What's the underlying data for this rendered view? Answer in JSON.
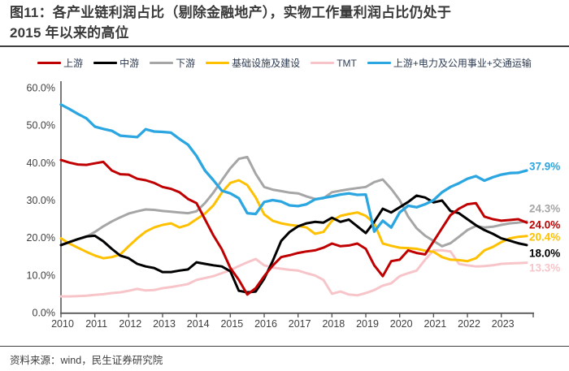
{
  "title": {
    "line1": "图11：各产业链利润占比（剔除金融地产），实物工作量利润占比仍处于",
    "line2": "2015 年以来的高位"
  },
  "source": "资料来源：wind，民生证券研究院",
  "colors": {
    "axis": "#595959",
    "tick_text": "#404040",
    "title_text": "#3a3a3a",
    "legend_text": "#2d3b52"
  },
  "chart_data": {
    "type": "line",
    "x_start": 2010,
    "x_step": 0.25,
    "x_ticks": [
      2010,
      2011,
      2012,
      2013,
      2014,
      2015,
      2016,
      2017,
      2018,
      2019,
      2020,
      2021,
      2022,
      2023
    ],
    "y_ticks": [
      "0.0%",
      "10.0%",
      "20.0%",
      "30.0%",
      "40.0%",
      "50.0%",
      "60.0%"
    ],
    "ylim": [
      0,
      60
    ],
    "xlim": [
      2010,
      2023.85
    ],
    "legend_position": "top",
    "grid": false,
    "series": [
      {
        "name": "上游",
        "color": "#C00000",
        "end_label": "24.0%",
        "values": [
          40.7,
          40.0,
          39.5,
          39.4,
          39.8,
          40.2,
          37.9,
          36.9,
          36.8,
          35.7,
          35.3,
          34.6,
          33.5,
          33.0,
          32.1,
          30.3,
          29.2,
          24.9,
          20.6,
          16.9,
          11.9,
          8.7,
          4.8,
          6.5,
          9.7,
          12.5,
          14.8,
          15.3,
          15.9,
          16.3,
          16.6,
          17.3,
          18.4,
          17.7,
          17.9,
          18.4,
          17.0,
          12.6,
          9.7,
          13.7,
          14.1,
          16.6,
          15.9,
          15.5,
          19.0,
          22.5,
          26.0,
          27.7,
          28.9,
          29.2,
          25.6,
          24.9,
          24.5,
          24.7,
          24.9,
          24.0
        ]
      },
      {
        "name": "中游",
        "color": "#000000",
        "end_label": "18.0%",
        "values": [
          18.0,
          18.8,
          19.6,
          20.3,
          20.5,
          19.0,
          17.0,
          15.2,
          14.5,
          13.0,
          12.3,
          11.9,
          10.8,
          10.8,
          11.2,
          11.5,
          13.4,
          13.0,
          12.6,
          12.3,
          11.0,
          5.8,
          5.4,
          5.6,
          9.0,
          13.7,
          19.1,
          21.5,
          23.0,
          23.8,
          24.2,
          24.0,
          25.3,
          24.2,
          24.8,
          23.0,
          21.2,
          24.2,
          27.7,
          26.7,
          28.1,
          29.5,
          31.2,
          30.7,
          29.4,
          29.9,
          27.1,
          26.5,
          24.9,
          23.3,
          22.0,
          21.0,
          19.8,
          19.2,
          18.5,
          18.0
        ]
      },
      {
        "name": "下游",
        "color": "#A6A6A6",
        "end_label": "24.3%",
        "values": [
          18.0,
          18.8,
          19.5,
          20.2,
          21.5,
          23.0,
          24.3,
          25.4,
          26.4,
          27.0,
          27.5,
          27.4,
          27.1,
          26.9,
          26.7,
          26.5,
          27.0,
          29.2,
          32.0,
          35.3,
          38.5,
          41.0,
          41.5,
          37.0,
          33.5,
          32.8,
          32.4,
          32.0,
          31.8,
          31.0,
          30.3,
          30.5,
          32.1,
          32.5,
          32.9,
          33.2,
          33.5,
          34.8,
          35.5,
          33.0,
          30.0,
          25.6,
          22.5,
          20.5,
          19.1,
          17.7,
          18.5,
          20.2,
          22.0,
          23.1,
          22.7,
          22.9,
          23.4,
          23.8,
          24.0,
          24.3
        ]
      },
      {
        "name": "基础设施及建设",
        "color": "#FFC000",
        "end_label": "20.4%",
        "values": [
          19.8,
          18.4,
          17.3,
          16.2,
          15.2,
          14.5,
          14.8,
          15.5,
          17.7,
          19.8,
          21.6,
          22.7,
          23.4,
          23.8,
          22.7,
          23.4,
          24.9,
          26.4,
          28.6,
          32.0,
          34.6,
          35.3,
          34.0,
          30.7,
          26.2,
          24.5,
          23.8,
          23.4,
          23.1,
          22.7,
          21.0,
          21.5,
          24.5,
          25.8,
          26.3,
          26.7,
          25.8,
          23.8,
          18.4,
          17.8,
          17.3,
          17.2,
          17.0,
          16.5,
          16.2,
          14.8,
          14.1,
          14.0,
          13.7,
          14.5,
          16.6,
          17.5,
          18.8,
          19.8,
          20.2,
          20.4
        ]
      },
      {
        "name": "TMT",
        "color": "#F7C5C9",
        "end_label": "13.3%",
        "values": [
          4.3,
          4.3,
          4.4,
          4.5,
          4.7,
          4.9,
          5.2,
          5.4,
          5.8,
          6.3,
          5.9,
          6.0,
          6.5,
          6.8,
          7.2,
          7.6,
          8.7,
          9.2,
          9.7,
          10.5,
          11.3,
          12.4,
          13.4,
          14.3,
          12.6,
          12.0,
          11.7,
          11.4,
          11.2,
          10.5,
          9.9,
          8.7,
          5.0,
          5.6,
          4.8,
          4.6,
          5.2,
          6.0,
          7.2,
          7.8,
          9.7,
          10.5,
          11.2,
          14.1,
          16.6,
          16.6,
          16.3,
          13.0,
          12.6,
          12.3,
          12.4,
          12.6,
          13.0,
          13.1,
          13.2,
          13.3
        ]
      },
      {
        "name": "上游+电力及公用事业+交通运输",
        "color": "#2BA6E0",
        "end_label": "37.9%",
        "values": [
          55.5,
          54.3,
          53.0,
          51.8,
          49.6,
          49.0,
          48.5,
          47.2,
          47.0,
          46.8,
          48.9,
          48.3,
          48.2,
          48.0,
          46.3,
          44.8,
          41.8,
          37.9,
          35.3,
          32.5,
          31.8,
          30.5,
          26.5,
          26.3,
          29.5,
          30.0,
          29.6,
          28.6,
          28.4,
          28.9,
          30.2,
          30.6,
          31.0,
          31.5,
          31.8,
          31.4,
          31.5,
          21.6,
          24.5,
          22.7,
          26.7,
          28.5,
          28.1,
          28.9,
          30.0,
          32.1,
          33.5,
          34.5,
          35.7,
          36.4,
          35.2,
          36.1,
          36.8,
          37.2,
          37.3,
          37.9
        ]
      }
    ]
  }
}
